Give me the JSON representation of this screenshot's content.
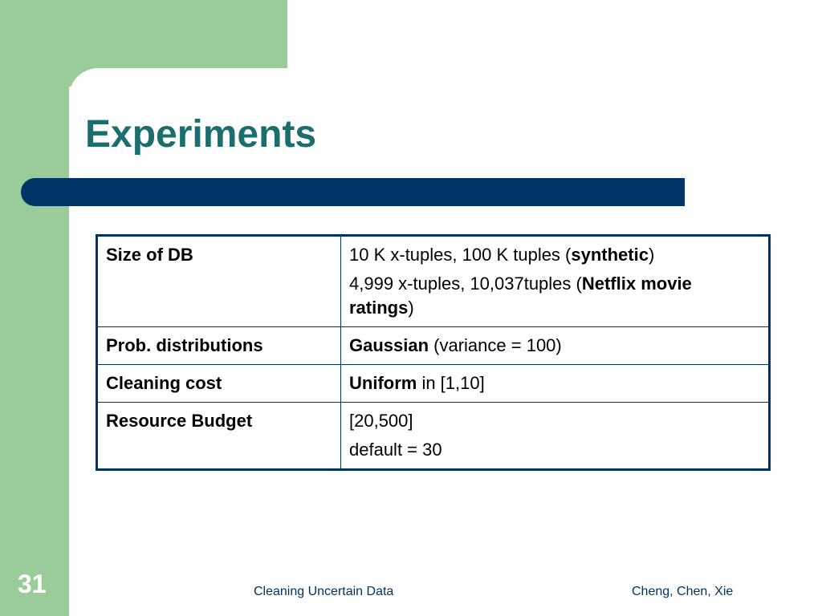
{
  "slide": {
    "title": "Experiments",
    "number": "31",
    "footer_center": "Cleaning Uncertain Data",
    "footer_right": "Cheng, Chen, Xie"
  },
  "colors": {
    "accent_green": "#99cc99",
    "title_teal": "#1a6e6e",
    "bar_navy": "#003366"
  },
  "table": {
    "rows": [
      {
        "label": "Size of DB",
        "lines": [
          {
            "parts": [
              {
                "text": "10 K x-tuples, 100 K tuples (",
                "bold": false
              },
              {
                "text": "synthetic",
                "bold": true
              },
              {
                "text": ")",
                "bold": false
              }
            ]
          },
          {
            "parts": [
              {
                "text": "4,999 x-tuples, 10,037tuples (",
                "bold": false
              },
              {
                "text": "Netflix movie ratings",
                "bold": true
              },
              {
                "text": ")",
                "bold": false
              }
            ]
          }
        ]
      },
      {
        "label": "Prob. distributions",
        "lines": [
          {
            "parts": [
              {
                "text": "Gaussian",
                "bold": true
              },
              {
                "text": " (variance = 100)",
                "bold": false
              }
            ]
          }
        ]
      },
      {
        "label": "Cleaning cost",
        "lines": [
          {
            "parts": [
              {
                "text": "Uniform",
                "bold": true
              },
              {
                "text": " in [1,10]",
                "bold": false
              }
            ]
          }
        ]
      },
      {
        "label": "Resource Budget",
        "lines": [
          {
            "parts": [
              {
                "text": "[20,500]",
                "bold": false
              }
            ]
          },
          {
            "parts": [
              {
                "text": "default  = 30",
                "bold": false
              }
            ]
          }
        ]
      }
    ]
  }
}
